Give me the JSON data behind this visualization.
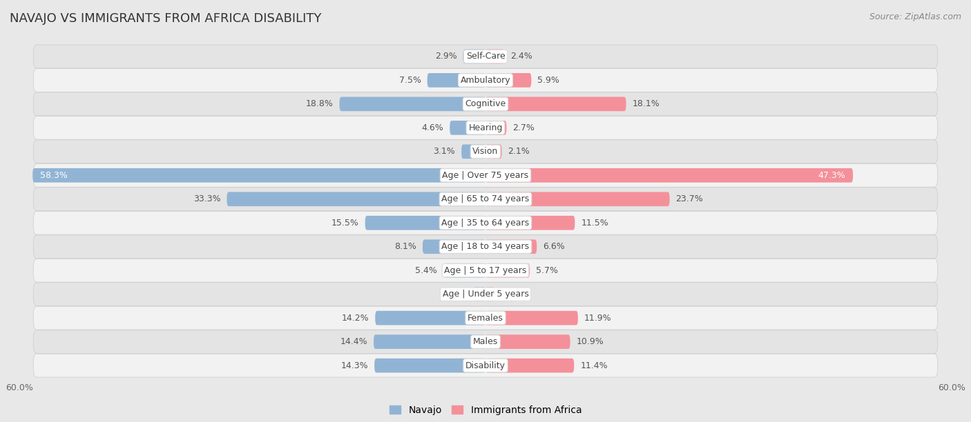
{
  "title": "NAVAJO VS IMMIGRANTS FROM AFRICA DISABILITY",
  "source": "Source: ZipAtlas.com",
  "categories": [
    "Disability",
    "Males",
    "Females",
    "Age | Under 5 years",
    "Age | 5 to 17 years",
    "Age | 18 to 34 years",
    "Age | 35 to 64 years",
    "Age | 65 to 74 years",
    "Age | Over 75 years",
    "Vision",
    "Hearing",
    "Cognitive",
    "Ambulatory",
    "Self-Care"
  ],
  "navajo": [
    14.3,
    14.4,
    14.2,
    1.6,
    5.4,
    8.1,
    15.5,
    33.3,
    58.3,
    3.1,
    4.6,
    18.8,
    7.5,
    2.9
  ],
  "africa": [
    11.4,
    10.9,
    11.9,
    1.2,
    5.7,
    6.6,
    11.5,
    23.7,
    47.3,
    2.1,
    2.7,
    18.1,
    5.9,
    2.4
  ],
  "navajo_color": "#92b4d4",
  "africa_color": "#f4909a",
  "navajo_label": "Navajo",
  "africa_label": "Immigrants from Africa",
  "xlim": 60.0,
  "bg_color": "#e8e8e8",
  "row_color_even": "#f2f2f2",
  "row_color_odd": "#e4e4e4",
  "bar_height": 0.6,
  "title_fontsize": 13,
  "label_fontsize": 9,
  "value_fontsize": 9,
  "tick_fontsize": 9,
  "source_fontsize": 9
}
